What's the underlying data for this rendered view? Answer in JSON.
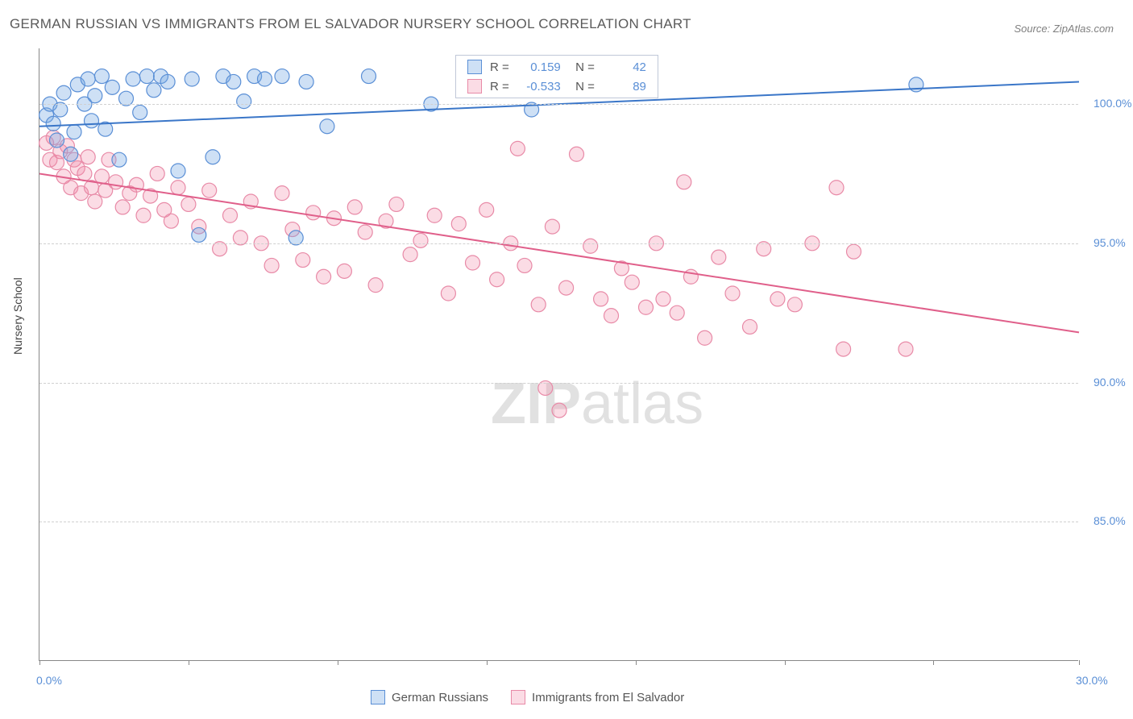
{
  "title": "GERMAN RUSSIAN VS IMMIGRANTS FROM EL SALVADOR NURSERY SCHOOL CORRELATION CHART",
  "source": "Source: ZipAtlas.com",
  "watermark_bold": "ZIP",
  "watermark_rest": "atlas",
  "yaxis_title": "Nursery School",
  "chart": {
    "type": "scatter",
    "xlim": [
      0,
      30
    ],
    "ylim": [
      80,
      102
    ],
    "xticks": [
      0,
      4.3,
      8.6,
      12.9,
      17.2,
      21.5,
      25.8,
      30
    ],
    "xtick_labels": {
      "0": "0.0%",
      "30": "30.0%"
    },
    "yticks": [
      85,
      90,
      95,
      100
    ],
    "ytick_labels": {
      "85": "85.0%",
      "90": "90.0%",
      "95": "95.0%",
      "100": "100.0%"
    },
    "grid_color": "#d0d0d0",
    "axis_color": "#888888",
    "label_color": "#5a8fd6",
    "marker_radius": 9,
    "marker_stroke_width": 1.2,
    "line_width": 2,
    "series": [
      {
        "name": "German Russians",
        "color_fill": "rgba(116,166,226,0.35)",
        "color_stroke": "#5a8fd6",
        "line_color": "#3a76c8",
        "R": "0.159",
        "N": "42",
        "trend": {
          "x1": 0,
          "y1": 99.2,
          "x2": 30,
          "y2": 100.8
        },
        "points": [
          [
            0.2,
            99.6
          ],
          [
            0.3,
            100.0
          ],
          [
            0.4,
            99.3
          ],
          [
            0.5,
            98.7
          ],
          [
            0.6,
            99.8
          ],
          [
            0.7,
            100.4
          ],
          [
            0.9,
            98.2
          ],
          [
            1.0,
            99.0
          ],
          [
            1.1,
            100.7
          ],
          [
            1.3,
            100.0
          ],
          [
            1.4,
            100.9
          ],
          [
            1.5,
            99.4
          ],
          [
            1.6,
            100.3
          ],
          [
            1.8,
            101.0
          ],
          [
            1.9,
            99.1
          ],
          [
            2.1,
            100.6
          ],
          [
            2.3,
            98.0
          ],
          [
            2.5,
            100.2
          ],
          [
            2.7,
            100.9
          ],
          [
            2.9,
            99.7
          ],
          [
            3.1,
            101.0
          ],
          [
            3.3,
            100.5
          ],
          [
            3.5,
            101.0
          ],
          [
            3.7,
            100.8
          ],
          [
            4.0,
            97.6
          ],
          [
            4.4,
            100.9
          ],
          [
            4.6,
            95.3
          ],
          [
            5.0,
            98.1
          ],
          [
            5.3,
            101.0
          ],
          [
            5.6,
            100.8
          ],
          [
            5.9,
            100.1
          ],
          [
            6.2,
            101.0
          ],
          [
            6.5,
            100.9
          ],
          [
            7.0,
            101.0
          ],
          [
            7.4,
            95.2
          ],
          [
            7.7,
            100.8
          ],
          [
            8.3,
            99.2
          ],
          [
            9.5,
            101.0
          ],
          [
            11.3,
            100.0
          ],
          [
            12.8,
            100.5
          ],
          [
            14.2,
            99.8
          ],
          [
            25.3,
            100.7
          ]
        ]
      },
      {
        "name": "Immigrants from El Salvador",
        "color_fill": "rgba(242,140,168,0.30)",
        "color_stroke": "#e88aa7",
        "line_color": "#e05f8a",
        "R": "-0.533",
        "N": "89",
        "trend": {
          "x1": 0,
          "y1": 97.5,
          "x2": 30,
          "y2": 91.8
        },
        "points": [
          [
            0.2,
            98.6
          ],
          [
            0.3,
            98.0
          ],
          [
            0.4,
            98.8
          ],
          [
            0.5,
            97.9
          ],
          [
            0.6,
            98.3
          ],
          [
            0.7,
            97.4
          ],
          [
            0.8,
            98.5
          ],
          [
            0.9,
            97.0
          ],
          [
            1.0,
            98.0
          ],
          [
            1.1,
            97.7
          ],
          [
            1.2,
            96.8
          ],
          [
            1.3,
            97.5
          ],
          [
            1.4,
            98.1
          ],
          [
            1.5,
            97.0
          ],
          [
            1.6,
            96.5
          ],
          [
            1.8,
            97.4
          ],
          [
            1.9,
            96.9
          ],
          [
            2.0,
            98.0
          ],
          [
            2.2,
            97.2
          ],
          [
            2.4,
            96.3
          ],
          [
            2.6,
            96.8
          ],
          [
            2.8,
            97.1
          ],
          [
            3.0,
            96.0
          ],
          [
            3.2,
            96.7
          ],
          [
            3.4,
            97.5
          ],
          [
            3.6,
            96.2
          ],
          [
            3.8,
            95.8
          ],
          [
            4.0,
            97.0
          ],
          [
            4.3,
            96.4
          ],
          [
            4.6,
            95.6
          ],
          [
            4.9,
            96.9
          ],
          [
            5.2,
            94.8
          ],
          [
            5.5,
            96.0
          ],
          [
            5.8,
            95.2
          ],
          [
            6.1,
            96.5
          ],
          [
            6.4,
            95.0
          ],
          [
            6.7,
            94.2
          ],
          [
            7.0,
            96.8
          ],
          [
            7.3,
            95.5
          ],
          [
            7.6,
            94.4
          ],
          [
            7.9,
            96.1
          ],
          [
            8.2,
            93.8
          ],
          [
            8.5,
            95.9
          ],
          [
            8.8,
            94.0
          ],
          [
            9.1,
            96.3
          ],
          [
            9.4,
            95.4
          ],
          [
            9.7,
            93.5
          ],
          [
            10.0,
            95.8
          ],
          [
            10.3,
            96.4
          ],
          [
            10.7,
            94.6
          ],
          [
            11.0,
            95.1
          ],
          [
            11.4,
            96.0
          ],
          [
            11.8,
            93.2
          ],
          [
            12.1,
            95.7
          ],
          [
            12.5,
            94.3
          ],
          [
            12.9,
            96.2
          ],
          [
            13.2,
            93.7
          ],
          [
            13.6,
            95.0
          ],
          [
            13.8,
            98.4
          ],
          [
            14.0,
            94.2
          ],
          [
            14.4,
            92.8
          ],
          [
            14.6,
            89.8
          ],
          [
            14.8,
            95.6
          ],
          [
            15.0,
            89.0
          ],
          [
            15.2,
            93.4
          ],
          [
            15.5,
            98.2
          ],
          [
            15.9,
            94.9
          ],
          [
            16.2,
            93.0
          ],
          [
            16.5,
            92.4
          ],
          [
            16.8,
            94.1
          ],
          [
            17.1,
            93.6
          ],
          [
            17.5,
            92.7
          ],
          [
            17.8,
            95.0
          ],
          [
            18.0,
            93.0
          ],
          [
            18.4,
            92.5
          ],
          [
            18.6,
            97.2
          ],
          [
            18.8,
            93.8
          ],
          [
            19.2,
            91.6
          ],
          [
            19.6,
            94.5
          ],
          [
            20.0,
            93.2
          ],
          [
            20.5,
            92.0
          ],
          [
            20.9,
            94.8
          ],
          [
            21.3,
            93.0
          ],
          [
            21.8,
            92.8
          ],
          [
            22.3,
            95.0
          ],
          [
            23.0,
            97.0
          ],
          [
            23.2,
            91.2
          ],
          [
            23.5,
            94.7
          ],
          [
            25.0,
            91.2
          ]
        ]
      }
    ]
  },
  "legend_bottom": [
    {
      "label": "German Russians",
      "fill": "rgba(116,166,226,0.35)",
      "stroke": "#5a8fd6"
    },
    {
      "label": "Immigrants from El Salvador",
      "fill": "rgba(242,140,168,0.30)",
      "stroke": "#e88aa7"
    }
  ]
}
